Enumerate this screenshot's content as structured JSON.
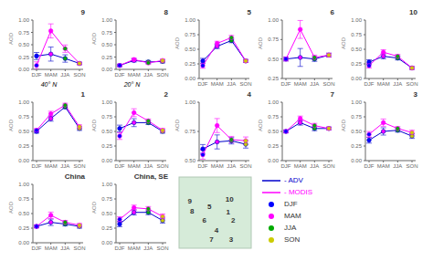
{
  "chart_data": [
    {
      "type": "line",
      "title": "9",
      "categories": [
        "DJF",
        "MAM",
        "JJA",
        "SON"
      ],
      "colors": [
        "#0000ff",
        "#ff00ff",
        "#00aa00",
        "#cccc00"
      ],
      "marker": "circle",
      "series": [
        {
          "name": "- ADV",
          "color": "#0000cc",
          "line_style": "solid",
          "values": [
            0.27,
            0.31,
            0.22,
            0.12
          ],
          "errors": [
            0.0725,
            0.1425,
            0.075,
            0.025
          ]
        },
        {
          "name": "- MODIS",
          "color": "#ff00ff",
          "line_style": "solid",
          "values": [
            0.08,
            0.78,
            0.42,
            0.12
          ],
          "errors": [
            0.0725,
            0.1425,
            0.075,
            0.025
          ]
        }
      ],
      "ylim": [
        0,
        1
      ],
      "yticks": [
        {
          "value": 0,
          "label": "0.00"
        },
        {
          "value": 0.25,
          "label": "0.25"
        },
        {
          "value": 0.5,
          "label": "0.50"
        },
        {
          "value": 0.75,
          "label": "0.75"
        },
        {
          "value": 1,
          "label": "1.00"
        }
      ],
      "y_label": "AOD",
      "grid": false,
      "annotations": [
        "40° N"
      ],
      "legend": "lower right"
    },
    {
      "type": "line",
      "title": "8",
      "categories": [
        "DJF",
        "MAM",
        "JJA",
        "SON"
      ],
      "colors": [
        "#0000ff",
        "#ff00ff",
        "#00aa00",
        "#cccc00"
      ],
      "marker": "circle",
      "series": [
        {
          "name": "- ADV",
          "color": "#0000cc",
          "line_style": "solid",
          "values": [
            0.08,
            0.18,
            0.15,
            0.16
          ],
          "errors": [
            0.025,
            0.03,
            0.03,
            0.03
          ]
        },
        {
          "name": "- MODIS",
          "color": "#ff00ff",
          "line_style": "solid",
          "values": [
            0.08,
            0.2,
            0.13,
            0.18
          ],
          "errors": [
            0.025,
            0.03,
            0.03,
            0.03
          ]
        }
      ],
      "ylim": [
        0,
        1
      ],
      "yticks": [
        {
          "value": 0,
          "label": "0.00"
        },
        {
          "value": 0.25,
          "label": "0.25"
        },
        {
          "value": 0.5,
          "label": "0.50"
        },
        {
          "value": 0.75,
          "label": "0.75"
        },
        {
          "value": 1,
          "label": "1.00"
        }
      ],
      "y_label": "AOD",
      "grid": false,
      "annotations": [
        "20° N"
      ]
    },
    {
      "type": "line",
      "title": "5",
      "categories": [
        "DJF",
        "MAM",
        "JJA",
        "SON"
      ],
      "colors": [
        "#0000ff",
        "#ff00ff",
        "#00aa00",
        "#cccc00"
      ],
      "marker": "circle",
      "series": [
        {
          "name": "- ADV",
          "color": "#0000cc",
          "line_style": "solid",
          "values": [
            0.3,
            0.55,
            0.65,
            0.3
          ],
          "errors": [
            0.045,
            0.0375,
            0.0375,
            0.025
          ]
        },
        {
          "name": "- MODIS",
          "color": "#ff00ff",
          "line_style": "solid",
          "values": [
            0.22,
            0.6,
            0.7,
            0.3
          ],
          "errors": [
            0.045,
            0.0375,
            0.0375,
            0.025
          ]
        }
      ],
      "ylim": [
        0,
        1
      ],
      "yticks": [
        {
          "value": 0,
          "label": "0.00"
        },
        {
          "value": 0.25,
          "label": "0.25"
        },
        {
          "value": 0.5,
          "label": "0.50"
        },
        {
          "value": 0.75,
          "label": "0.75"
        },
        {
          "value": 1,
          "label": "1.00"
        }
      ],
      "y_label": "AOD",
      "grid": false
    },
    {
      "type": "line",
      "title": "6",
      "categories": [
        "DJF",
        "MAM",
        "JJA",
        "SON"
      ],
      "colors": [
        "#0000ff",
        "#ff00ff",
        "#00aa00",
        "#cccc00"
      ],
      "marker": "circle",
      "series": [
        {
          "name": "- ADV",
          "color": "#0000cc",
          "line_style": "solid",
          "values": [
            0.5,
            0.52,
            0.5,
            0.55
          ],
          "errors": [
            0.025,
            0.115,
            0.03,
            0.025
          ]
        },
        {
          "name": "- MODIS",
          "color": "#ff00ff",
          "line_style": "solid",
          "values": [
            0.5,
            0.88,
            0.52,
            0.55
          ],
          "errors": [
            0.025,
            0.115,
            0.03,
            0.025
          ]
        }
      ],
      "ylim": [
        0.25,
        1
      ],
      "yticks": [
        {
          "value": 0.25,
          "label": "0.25"
        },
        {
          "value": 0.5,
          "label": "0.50"
        },
        {
          "value": 0.75,
          "label": "0.75"
        },
        {
          "value": 1,
          "label": "1.00"
        }
      ],
      "y_label": "AOD",
      "grid": false
    },
    {
      "type": "line",
      "title": "10",
      "categories": [
        "DJF",
        "MAM",
        "JJA",
        "SON"
      ],
      "colors": [
        "#0000ff",
        "#ff00ff",
        "#00aa00",
        "#cccc00"
      ],
      "marker": "circle",
      "series": [
        {
          "name": "- ADV",
          "color": "#0000cc",
          "line_style": "solid",
          "values": [
            0.28,
            0.38,
            0.35,
            0.18
          ],
          "errors": [
            0.04,
            0.0425,
            0.0325,
            0.025
          ]
        },
        {
          "name": "- MODIS",
          "color": "#ff00ff",
          "line_style": "solid",
          "values": [
            0.22,
            0.45,
            0.38,
            0.18
          ],
          "errors": [
            0.04,
            0.0425,
            0.0325,
            0.025
          ]
        }
      ],
      "ylim": [
        0,
        1
      ],
      "yticks": [
        {
          "value": 0,
          "label": "0.00"
        },
        {
          "value": 0.25,
          "label": "0.25"
        },
        {
          "value": 0.5,
          "label": "0.50"
        },
        {
          "value": 0.75,
          "label": "0.75"
        },
        {
          "value": 1,
          "label": "1.00"
        }
      ],
      "y_label": "AOD",
      "grid": false
    },
    {
      "type": "line",
      "title": "1",
      "categories": [
        "DJF",
        "MAM",
        "JJA",
        "SON"
      ],
      "colors": [
        "#0000ff",
        "#ff00ff",
        "#00aa00",
        "#cccc00"
      ],
      "marker": "circle",
      "series": [
        {
          "name": "- ADV",
          "color": "#0000cc",
          "line_style": "solid",
          "values": [
            0.5,
            0.72,
            0.92,
            0.55
          ],
          "errors": [
            0.03,
            0.045,
            0.0325,
            0.0325
          ]
        },
        {
          "name": "- MODIS",
          "color": "#ff00ff",
          "line_style": "solid",
          "values": [
            0.52,
            0.8,
            0.95,
            0.58
          ],
          "errors": [
            0.03,
            0.045,
            0.0325,
            0.0325
          ]
        }
      ],
      "ylim": [
        0,
        1
      ],
      "yticks": [
        {
          "value": 0,
          "label": "0.00"
        },
        {
          "value": 0.25,
          "label": "0.25"
        },
        {
          "value": 0.5,
          "label": "0.50"
        },
        {
          "value": 0.75,
          "label": "0.75"
        },
        {
          "value": 1,
          "label": "1.00"
        }
      ],
      "y_label": "AOD",
      "grid": false
    },
    {
      "type": "line",
      "title": "2",
      "categories": [
        "DJF",
        "MAM",
        "JJA",
        "SON"
      ],
      "colors": [
        "#0000ff",
        "#ff00ff",
        "#00aa00",
        "#cccc00"
      ],
      "marker": "circle",
      "series": [
        {
          "name": "- ADV",
          "color": "#0000cc",
          "line_style": "solid",
          "values": [
            0.55,
            0.65,
            0.65,
            0.5
          ],
          "errors": [
            0.0575,
            0.0675,
            0.0325,
            0.03
          ]
        },
        {
          "name": "- MODIS",
          "color": "#ff00ff",
          "line_style": "solid",
          "values": [
            0.42,
            0.82,
            0.68,
            0.52
          ],
          "errors": [
            0.0575,
            0.0675,
            0.0325,
            0.03
          ]
        }
      ],
      "ylim": [
        0,
        1
      ],
      "yticks": [
        {
          "value": 0,
          "label": "0.00"
        },
        {
          "value": 0.25,
          "label": "0.25"
        },
        {
          "value": 0.5,
          "label": "0.50"
        },
        {
          "value": 0.75,
          "label": "0.75"
        },
        {
          "value": 1,
          "label": "1.00"
        }
      ],
      "y_label": "AOD",
      "grid": false
    },
    {
      "type": "line",
      "title": "4",
      "categories": [
        "DJF",
        "MAM",
        "JJA",
        "SON"
      ],
      "colors": [
        "#0000ff",
        "#ff00ff",
        "#00aa00",
        "#cccc00"
      ],
      "marker": "circle",
      "series": [
        {
          "name": "- ADV",
          "color": "#0000cc",
          "line_style": "solid",
          "values": [
            0.6,
            0.66,
            0.67,
            0.64
          ],
          "errors": [
            0.0375,
            0.06,
            0.0275,
            0.0325
          ]
        },
        {
          "name": "- MODIS",
          "color": "#ff00ff",
          "line_style": "solid",
          "values": [
            0.55,
            0.8,
            0.68,
            0.67
          ],
          "errors": [
            0.0375,
            0.06,
            0.0275,
            0.0325
          ]
        }
      ],
      "ylim": [
        0.5,
        1
      ],
      "yticks": [
        {
          "value": 0.5,
          "label": "0.50"
        },
        {
          "value": 0.75,
          "label": "0.75"
        },
        {
          "value": 1,
          "label": "1.00"
        }
      ],
      "y_label": "AOD",
      "grid": false
    },
    {
      "type": "line",
      "title": "7",
      "categories": [
        "DJF",
        "MAM",
        "JJA",
        "SON"
      ],
      "colors": [
        "#0000ff",
        "#ff00ff",
        "#00aa00",
        "#cccc00"
      ],
      "marker": "circle",
      "series": [
        {
          "name": "- ADV",
          "color": "#0000cc",
          "line_style": "solid",
          "values": [
            0.5,
            0.65,
            0.55,
            0.55
          ],
          "errors": [
            0.025,
            0.0425,
            0.0375,
            0.025
          ]
        },
        {
          "name": "- MODIS",
          "color": "#ff00ff",
          "line_style": "solid",
          "values": [
            0.5,
            0.72,
            0.6,
            0.55
          ],
          "errors": [
            0.025,
            0.0425,
            0.0375,
            0.025
          ]
        }
      ],
      "ylim": [
        0,
        1
      ],
      "yticks": [
        {
          "value": 0,
          "label": "0.00"
        },
        {
          "value": 0.25,
          "label": "0.25"
        },
        {
          "value": 0.5,
          "label": "0.50"
        },
        {
          "value": 0.75,
          "label": "0.75"
        },
        {
          "value": 1,
          "label": "1.00"
        }
      ],
      "y_label": "AOD",
      "grid": false
    },
    {
      "type": "line",
      "title": "3",
      "categories": [
        "DJF",
        "MAM",
        "JJA",
        "SON"
      ],
      "colors": [
        "#0000ff",
        "#ff00ff",
        "#00aa00",
        "#cccc00"
      ],
      "marker": "circle",
      "series": [
        {
          "name": "- ADV",
          "color": "#0000cc",
          "line_style": "solid",
          "values": [
            0.35,
            0.5,
            0.52,
            0.42
          ],
          "errors": [
            0.05,
            0.0625,
            0.0325,
            0.04
          ]
        },
        {
          "name": "- MODIS",
          "color": "#ff00ff",
          "line_style": "solid",
          "values": [
            0.45,
            0.65,
            0.55,
            0.48
          ],
          "errors": [
            0.05,
            0.0625,
            0.0325,
            0.04
          ]
        }
      ],
      "ylim": [
        0,
        1
      ],
      "yticks": [
        {
          "value": 0,
          "label": "0.00"
        },
        {
          "value": 0.25,
          "label": "0.25"
        },
        {
          "value": 0.5,
          "label": "0.50"
        },
        {
          "value": 0.75,
          "label": "0.75"
        },
        {
          "value": 1,
          "label": "1.00"
        }
      ],
      "y_label": "AOD",
      "grid": false
    },
    {
      "type": "line",
      "title": "China",
      "categories": [
        "DJF",
        "MAM",
        "JJA",
        "SON"
      ],
      "colors": [
        "#0000ff",
        "#ff00ff",
        "#00aa00",
        "#cccc00"
      ],
      "marker": "circle",
      "series": [
        {
          "name": "- ADV",
          "color": "#0000cc",
          "line_style": "solid",
          "values": [
            0.28,
            0.35,
            0.32,
            0.28
          ],
          "errors": [
            0.025,
            0.055,
            0.0325,
            0.03
          ]
        },
        {
          "name": "- MODIS",
          "color": "#ff00ff",
          "line_style": "solid",
          "values": [
            0.28,
            0.47,
            0.35,
            0.3
          ],
          "errors": [
            0.025,
            0.055,
            0.0325,
            0.03
          ]
        }
      ],
      "ylim": [
        0,
        1
      ],
      "yticks": [
        {
          "value": 0,
          "label": "0.00"
        },
        {
          "value": 0.25,
          "label": "0.25"
        },
        {
          "value": 0.5,
          "label": "0.50"
        },
        {
          "value": 0.75,
          "label": "0.75"
        },
        {
          "value": 1,
          "label": "1.00"
        }
      ],
      "y_label": "AOD",
      "grid": false
    },
    {
      "type": "line",
      "title": "China, SE",
      "categories": [
        "DJF",
        "MAM",
        "JJA",
        "SON"
      ],
      "colors": [
        "#0000ff",
        "#ff00ff",
        "#00aa00",
        "#cccc00"
      ],
      "marker": "circle",
      "series": [
        {
          "name": "- ADV",
          "color": "#0000cc",
          "line_style": "solid",
          "values": [
            0.32,
            0.52,
            0.52,
            0.38
          ],
          "errors": [
            0.045,
            0.045,
            0.04,
            0.0425
          ]
        },
        {
          "name": "- MODIS",
          "color": "#ff00ff",
          "line_style": "solid",
          "values": [
            0.4,
            0.6,
            0.58,
            0.45
          ],
          "errors": [
            0.045,
            0.045,
            0.04,
            0.0425
          ]
        }
      ],
      "ylim": [
        0,
        1
      ],
      "yticks": [
        {
          "value": 0,
          "label": "0.00"
        },
        {
          "value": 0.25,
          "label": "0.25"
        },
        {
          "value": 0.5,
          "label": "0.50"
        },
        {
          "value": 0.75,
          "label": "0.75"
        },
        {
          "value": 1,
          "label": "1.00"
        }
      ],
      "y_label": "AOD",
      "grid": false
    },
    {
      "type": "map",
      "annotations": [
        "9",
        "8",
        "5",
        "6",
        "10",
        "1",
        "2",
        "4",
        "7",
        "3"
      ]
    }
  ]
}
